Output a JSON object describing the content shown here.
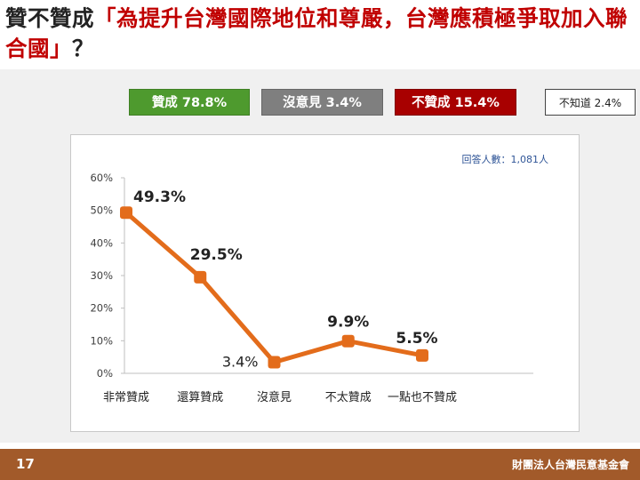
{
  "title": {
    "part1": "贊不贊成",
    "part2": "「為提升台灣國際地位和尊嚴，台灣應積極爭取加入聯合國」",
    "part3": "？"
  },
  "badges": [
    {
      "label": "贊成 78.8%",
      "color": "#4e9a2e"
    },
    {
      "label": "沒意見 3.4%",
      "color": "#7f7f7f"
    },
    {
      "label": "不贊成 15.4%",
      "color": "#a80000"
    },
    {
      "label": "不知道 2.4%",
      "color": "#ffffff"
    }
  ],
  "respondents": "回答人數：1,081人",
  "chart_data": {
    "type": "line",
    "categories": [
      "非常贊成",
      "還算贊成",
      "沒意見",
      "不太贊成",
      "一點也不贊成"
    ],
    "values": [
      49.3,
      29.5,
      3.4,
      9.9,
      5.5
    ],
    "data_labels": [
      "49.3%",
      "29.5%",
      "3.4%",
      "9.9%",
      "5.5%"
    ],
    "ylim": [
      0,
      60
    ],
    "yticks": [
      "0%",
      "10%",
      "20%",
      "30%",
      "40%",
      "50%",
      "60%"
    ],
    "line_color": "#e36c1b",
    "grid": false
  },
  "footer": {
    "page": "17",
    "org": "財團法人台灣民意基金會"
  }
}
